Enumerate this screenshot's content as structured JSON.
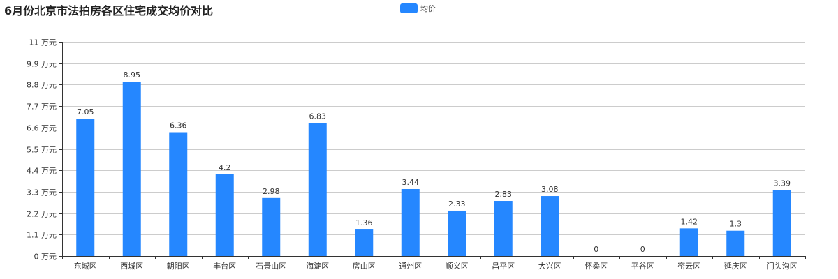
{
  "title": "6月份北京市法拍房各区住宅成交均价对比",
  "colors": {
    "bar": "#2587ff",
    "grid": "#cccccc",
    "axis": "#333333",
    "label": "#333333"
  },
  "chart_data": {
    "type": "bar",
    "title": "6月份北京市法拍房各区住宅成交均价对比",
    "xlabel": "",
    "ylabel": "",
    "y_unit": "万元",
    "ylim": [
      0,
      11
    ],
    "y_ticks": [
      0,
      1.1,
      2.2,
      3.3,
      4.4,
      5.5,
      6.6,
      7.7,
      8.8,
      9.9,
      11
    ],
    "y_tick_labels": [
      "0 万元",
      "1.1 万元",
      "2.2 万元",
      "3.3 万元",
      "4.4 万元",
      "5.5 万元",
      "6.6 万元",
      "7.7 万元",
      "8.8 万元",
      "9.9 万元",
      "11 万元"
    ],
    "grid": true,
    "legend_position": "top-center",
    "categories": [
      "东城区",
      "西城区",
      "朝阳区",
      "丰台区",
      "石景山区",
      "海淀区",
      "房山区",
      "通州区",
      "顺义区",
      "昌平区",
      "大兴区",
      "怀柔区",
      "平谷区",
      "密云区",
      "延庆区",
      "门头沟区"
    ],
    "series": [
      {
        "name": "均价",
        "values": [
          7.05,
          8.95,
          6.36,
          4.2,
          2.98,
          6.83,
          1.36,
          3.44,
          2.33,
          2.83,
          3.08,
          0,
          0,
          1.42,
          1.3,
          3.39
        ],
        "value_labels": [
          "7.05",
          "8.95",
          "6.36",
          "4.2",
          "2.98",
          "6.83",
          "1.36",
          "3.44",
          "2.33",
          "2.83",
          "3.08",
          "0",
          "0",
          "1.42",
          "1.3",
          "3.39"
        ]
      }
    ]
  }
}
